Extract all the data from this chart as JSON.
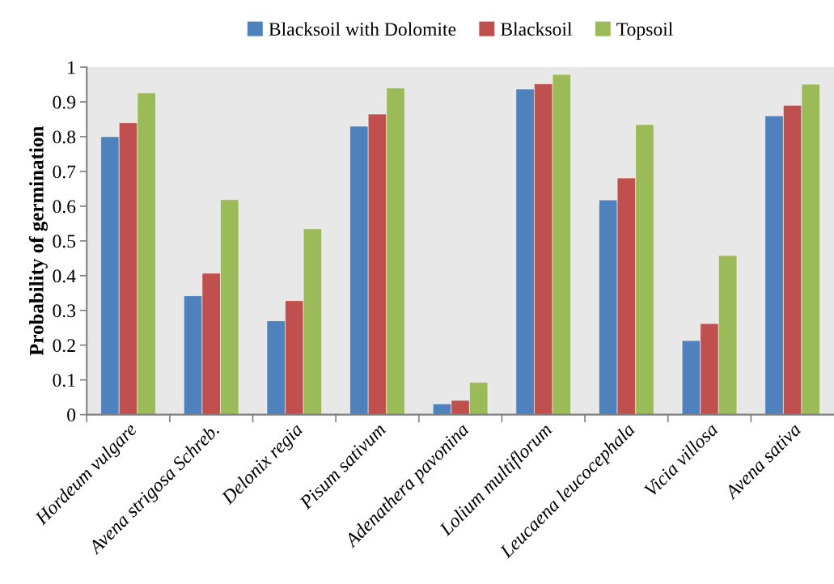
{
  "chart_data": {
    "type": "bar",
    "ylabel": "Probability of germination",
    "categories": [
      "Hordeum vulgare",
      "Avena strigosa Schreb.",
      "Delonix regia",
      "Pisum sativum",
      "Adenathera pavonina",
      "Lolium multiflorum",
      "Leucaena leucocephala",
      "Vicia villosa",
      "Avena sativa"
    ],
    "series": [
      {
        "name": "Blacksoil with Dolomite",
        "color": "#4f81bd",
        "values": [
          0.8,
          0.342,
          0.27,
          0.83,
          0.031,
          0.937,
          0.618,
          0.213,
          0.86
        ]
      },
      {
        "name": "Blacksoil",
        "color": "#c0504d",
        "values": [
          0.84,
          0.407,
          0.328,
          0.865,
          0.041,
          0.952,
          0.681,
          0.262,
          0.89
        ]
      },
      {
        "name": "Topsoil",
        "color": "#9bbb59",
        "values": [
          0.926,
          0.619,
          0.535,
          0.94,
          0.093,
          0.979,
          0.835,
          0.458,
          0.951
        ]
      }
    ],
    "ylim": [
      0,
      1
    ],
    "yticks": [
      0,
      0.1,
      0.2,
      0.3,
      0.4,
      0.5,
      0.6,
      0.7,
      0.8,
      0.9,
      1
    ],
    "grid": false,
    "legend": "top"
  }
}
